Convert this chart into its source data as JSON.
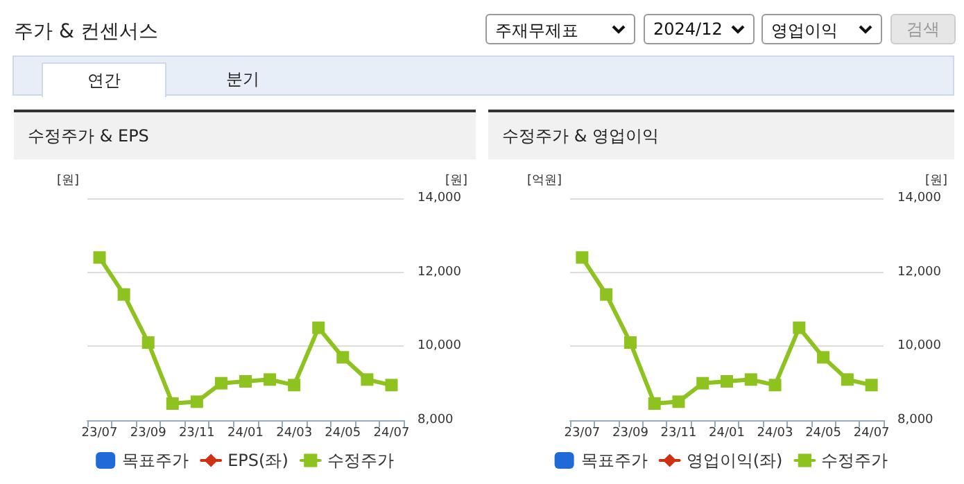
{
  "chart_data": [
    {
      "type": "other",
      "title": "주가 & 컨센서스",
      "annotations": [
        "주재무제표",
        "2024/12",
        "영업이익",
        "검색",
        "연간",
        "분기"
      ]
    },
    {
      "type": "line",
      "title": "수정주가 & EPS",
      "ylabel": "[원]",
      "y2label": "[원]",
      "categories": [
        "23/07",
        null,
        "23/09",
        null,
        "23/11",
        null,
        "24/01",
        null,
        "24/03",
        null,
        "24/05",
        null,
        "24/07"
      ],
      "series": [
        {
          "name": "목표주가",
          "type": "bar",
          "color": "#1f6ad6",
          "values": [
            null,
            null,
            null,
            null,
            null,
            null,
            null,
            null,
            null,
            null,
            null,
            null,
            null
          ]
        },
        {
          "name": "EPS(좌)",
          "color": "#d03010",
          "marker": "diamond",
          "values": [
            null,
            null,
            null,
            null,
            null,
            null,
            null,
            null,
            null,
            null,
            null,
            null,
            null
          ]
        },
        {
          "name": "수정주가",
          "color": "#8dc21f",
          "marker": "square",
          "axis": "y2",
          "values": [
            12400,
            11400,
            10100,
            8450,
            8500,
            9000,
            9050,
            9100,
            8950,
            10500,
            9700,
            9100,
            8950
          ]
        }
      ],
      "y2lim": [
        8000,
        14000
      ],
      "y2ticks": [
        {
          "value": 8000,
          "label": "8,000"
        },
        {
          "value": 10000,
          "label": "10,000"
        },
        {
          "value": 12000,
          "label": "12,000"
        },
        {
          "value": 14000,
          "label": "14,000"
        }
      ],
      "grid": "y",
      "legend": "bottom"
    },
    {
      "type": "line",
      "title": "수정주가 & 영업이익",
      "ylabel": "[억원]",
      "y2label": "[원]",
      "categories": [
        "23/07",
        null,
        "23/09",
        null,
        "23/11",
        null,
        "24/01",
        null,
        "24/03",
        null,
        "24/05",
        null,
        "24/07"
      ],
      "series": [
        {
          "name": "목표주가",
          "type": "bar",
          "color": "#1f6ad6",
          "values": [
            null,
            null,
            null,
            null,
            null,
            null,
            null,
            null,
            null,
            null,
            null,
            null,
            null
          ]
        },
        {
          "name": "영업이익(좌)",
          "color": "#d03010",
          "marker": "diamond",
          "values": [
            null,
            null,
            null,
            null,
            null,
            null,
            null,
            null,
            null,
            null,
            null,
            null,
            null
          ]
        },
        {
          "name": "수정주가",
          "color": "#8dc21f",
          "marker": "square",
          "axis": "y2",
          "values": [
            12400,
            11400,
            10100,
            8450,
            8500,
            9000,
            9050,
            9100,
            8950,
            10500,
            9700,
            9100,
            8950
          ]
        }
      ],
      "y2lim": [
        8000,
        14000
      ],
      "y2ticks": [
        {
          "value": 8000,
          "label": "8,000"
        },
        {
          "value": 10000,
          "label": "10,000"
        },
        {
          "value": 12000,
          "label": "12,000"
        },
        {
          "value": 14000,
          "label": "14,000"
        }
      ],
      "grid": "y",
      "legend": "bottom"
    }
  ]
}
